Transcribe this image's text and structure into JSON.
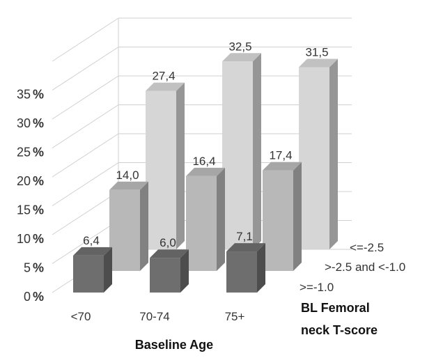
{
  "chart_data": {
    "type": "bar",
    "style": "3d-column",
    "categories": [
      "<70",
      "70-74",
      "75+"
    ],
    "series": [
      {
        "name": ">=-1.0",
        "values": [
          6.4,
          6.0,
          7.1
        ],
        "labels": [
          "6,4",
          "6,0",
          "7,1"
        ],
        "color": "#6e6e6e"
      },
      {
        "name": ">-2.5 and <-1.0",
        "values": [
          14.0,
          16.4,
          17.4
        ],
        "labels": [
          "14,0",
          "16,4",
          "17,4"
        ],
        "color": "#b8b8b8"
      },
      {
        "name": "<=-2.5",
        "values": [
          27.4,
          32.5,
          31.5
        ],
        "labels": [
          "27,4",
          "32,5",
          "31,5"
        ],
        "color": "#d6d6d6"
      }
    ],
    "yticks": [
      0,
      5,
      10,
      15,
      20,
      25,
      30,
      35
    ],
    "ytick_labels": [
      "0",
      "5",
      "10",
      "15",
      "20",
      "25",
      "30",
      "35"
    ],
    "ytick_unit": "%",
    "ylim": [
      0,
      40
    ],
    "xlabel": "Baseline Age",
    "zlabel_line1": "BL Femoral",
    "zlabel_line2": "neck T-score",
    "grid": true
  }
}
